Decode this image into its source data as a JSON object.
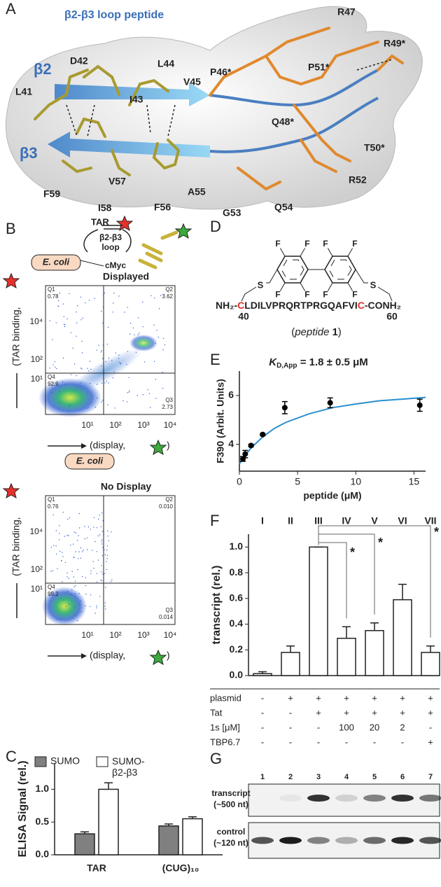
{
  "panel_A": {
    "letter": "A",
    "title": "β2-β3 loop peptide",
    "strands": [
      "β2",
      "β3"
    ],
    "residues": [
      "L41",
      "D42",
      "I43",
      "L44",
      "V45",
      "P46*",
      "R47",
      "Q48*",
      "P51*",
      "R49*",
      "T50*",
      "R52",
      "Q54",
      "G53",
      "A55",
      "F56",
      "I58",
      "V57",
      "F59"
    ]
  },
  "panel_B": {
    "letter": "B",
    "schematic": {
      "target": "TAR",
      "loop_top": "β2-β3",
      "loop_bottom": "loop",
      "host": "E. coli",
      "tag": "cMyc"
    },
    "y_label": "(TAR binding, ",
    "x_label": "(display, ",
    "yticks": [
      "10⁴",
      "10²",
      "10¹"
    ],
    "xticks": [
      "10¹",
      "10²",
      "10³",
      "10⁴"
    ],
    "plots": [
      {
        "title": "Displayed",
        "quadrants": [
          {
            "name": "Q1",
            "value": "0.78"
          },
          {
            "name": "Q2",
            "value": "3.62"
          },
          {
            "name": "Q4",
            "value": "92.9"
          },
          {
            "name": "Q3",
            "value": "2.73"
          }
        ]
      },
      {
        "title": "No Display",
        "quadrants": [
          {
            "name": "Q1",
            "value": "0.76"
          },
          {
            "name": "Q2",
            "value": "0.010"
          },
          {
            "name": "Q4",
            "value": "99.2"
          },
          {
            "name": "Q3",
            "value": "0.014"
          }
        ]
      }
    ]
  },
  "panel_D": {
    "letter": "D",
    "fluorine": "F",
    "sulfur": "S",
    "n_term": "NH₂-",
    "cys": "C",
    "sequence": "LDILVPRQRTPRGQAFVI",
    "c_term": "-CONH₂",
    "positions": [
      "40",
      "60"
    ],
    "caption": {
      "open": "(",
      "name": "peptide",
      "number": "1",
      "close": ")"
    }
  },
  "panel_G": {
    "letter": "G",
    "lanes": [
      "1",
      "2",
      "3",
      "4",
      "5",
      "6",
      "7"
    ],
    "rows": [
      {
        "label": "transcript",
        "size": "(~500 nt)"
      },
      {
        "label": "control",
        "size": "(~120 nt)"
      }
    ]
  },
  "chart_data": [
    {
      "type": "bar",
      "panel": "C",
      "y_label": "ELISA Signal (rel.)",
      "categories": [
        "TAR",
        "(CUG)₁₀"
      ],
      "series": [
        {
          "name": "SUMO",
          "color": "#808080",
          "values": [
            0.32,
            0.44
          ],
          "errors": [
            0.03,
            0.03
          ]
        },
        {
          "name": "SUMO-β2-β3",
          "color": "#ffffff",
          "values": [
            1.0,
            0.55
          ],
          "errors": [
            0.1,
            0.03
          ]
        }
      ],
      "ylim": [
        0,
        1.4
      ],
      "yticks": [
        {
          "value": 0,
          "label": "0.0"
        },
        {
          "value": 0.5,
          "label": "0.5"
        },
        {
          "value": 1,
          "label": "1.0"
        }
      ]
    },
    {
      "type": "scatter",
      "panel": "E",
      "title": {
        "symbol": "K",
        "subscript": "D,App",
        "rest": " = 1.8 ± 0.5 μM"
      },
      "x_label": "peptide (μM)",
      "y_label": "F390 (Arbit. Units)",
      "x": [
        0.3,
        0.5,
        1,
        2,
        3.9,
        7.8,
        15.5
      ],
      "values": [
        3.4,
        3.6,
        3.95,
        4.4,
        5.5,
        5.7,
        5.6
      ],
      "errors": [
        0.1,
        0.15,
        0.05,
        0.05,
        0.25,
        0.2,
        0.25
      ],
      "color": "#000000",
      "fit": {
        "color": "#2a8fd0",
        "x": [
          0,
          0.5,
          1,
          2,
          3,
          4,
          6,
          8,
          10,
          12,
          14,
          16
        ],
        "values": [
          3.2,
          3.55,
          3.85,
          4.3,
          4.65,
          4.9,
          5.25,
          5.5,
          5.65,
          5.78,
          5.85,
          5.92
        ]
      },
      "xlim": [
        0,
        16
      ],
      "ylim": [
        2.9,
        7
      ],
      "xticks": [
        0,
        5,
        10,
        15
      ],
      "yticks": [
        4,
        6
      ]
    },
    {
      "type": "bar",
      "panel": "F",
      "y_label": "transcript (rel.)",
      "categories": [
        "I",
        "II",
        "III",
        "IV",
        "V",
        "VI",
        "VII"
      ],
      "values": [
        0.015,
        0.18,
        1.0,
        0.29,
        0.35,
        0.59,
        0.18
      ],
      "errors": [
        0.015,
        0.05,
        0,
        0.09,
        0.06,
        0.12,
        0.05
      ],
      "color": "#ffffff",
      "significance_marker": "*",
      "ylim": [
        0,
        1.1
      ],
      "yticks": [
        {
          "value": 0,
          "label": "0.0"
        },
        {
          "value": 0.2,
          "label": "0.2"
        },
        {
          "value": 0.4,
          "label": "0.4"
        },
        {
          "value": 0.6,
          "label": "0.6"
        },
        {
          "value": 0.8,
          "label": "0.8"
        },
        {
          "value": 1,
          "label": "1.0"
        }
      ],
      "table": [
        {
          "label": "plasmid",
          "cells": [
            "-",
            "+",
            "+",
            "+",
            "+",
            "+",
            "+"
          ]
        },
        {
          "label": "Tat",
          "cells": [
            "-",
            "-",
            "+",
            "+",
            "+",
            "+",
            "+"
          ]
        },
        {
          "label": "1s [μM]",
          "cells": [
            "-",
            "-",
            "-",
            "100",
            "20",
            "2",
            "-"
          ]
        },
        {
          "label": "TBP6.7",
          "cells": [
            "-",
            "-",
            "-",
            "-",
            "-",
            "-",
            "+"
          ]
        }
      ]
    }
  ]
}
